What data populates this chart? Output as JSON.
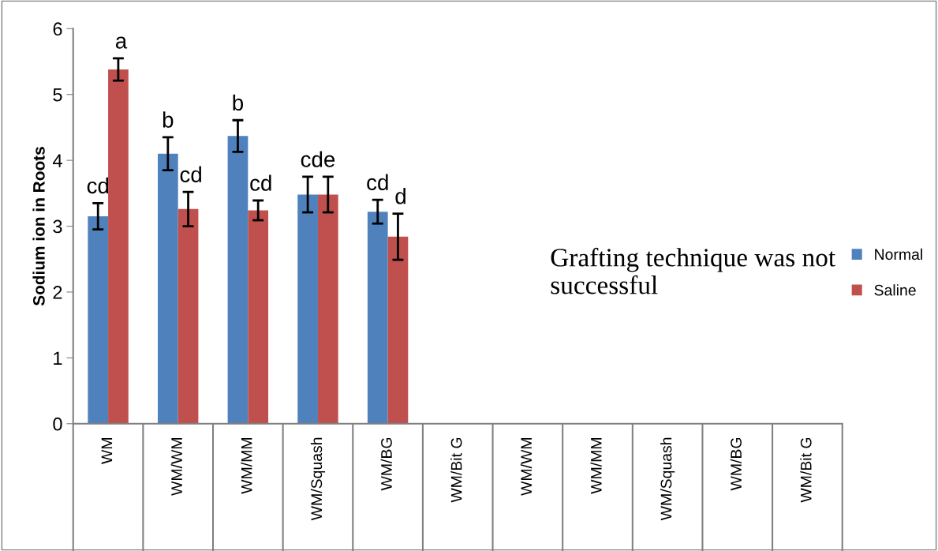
{
  "chart_data": {
    "type": "bar",
    "ylabel": "Sodium ion in Roots",
    "categories": [
      "WM",
      "WM/WM",
      "WM/MM",
      "WM/Squash",
      "WM/BG",
      "WM/Bit G",
      "WM/WM",
      "WM/MM",
      "WM/Squash",
      "WM/BG",
      "WM/Bit G"
    ],
    "series": [
      {
        "name": "Normal",
        "color": "#4f81bd",
        "values": [
          3.15,
          4.1,
          4.37,
          3.48,
          3.22,
          null,
          null,
          null,
          null,
          null,
          null
        ],
        "errors": [
          0.2,
          0.25,
          0.24,
          0.27,
          0.18,
          null,
          null,
          null,
          null,
          null,
          null
        ]
      },
      {
        "name": "Saline",
        "color": "#c0504d",
        "values": [
          5.38,
          3.26,
          3.24,
          3.48,
          2.84,
          null,
          null,
          null,
          null,
          null,
          null
        ],
        "errors": [
          0.17,
          0.26,
          0.15,
          0.27,
          0.35,
          null,
          null,
          null,
          null,
          null,
          null
        ]
      }
    ],
    "ylim": [
      0,
      6
    ],
    "yticks": [
      0,
      1,
      2,
      3,
      4,
      5,
      6
    ],
    "grid": false,
    "legend": "right",
    "annotations": [
      {
        "text": "cd",
        "x": "WM",
        "y": 3.15
      },
      {
        "text": "a",
        "x": "WM",
        "y": 5.38
      },
      {
        "text": "b",
        "x": "WM/WM",
        "y": 4.1
      },
      {
        "text": "cd",
        "x": "WM/WM",
        "y": 3.26
      },
      {
        "text": "b",
        "x": "WM/MM",
        "y": 4.37
      },
      {
        "text": "cd",
        "x": "WM/MM",
        "y": 3.24
      },
      {
        "text": "cde",
        "x": "WM/Squash",
        "y": 3.48
      },
      {
        "text": "cd",
        "x": "WM/BG",
        "y": 3.22
      },
      {
        "text": "d",
        "x": "WM/BG",
        "y": 2.84
      },
      "Grafting technique was not successful"
    ]
  }
}
